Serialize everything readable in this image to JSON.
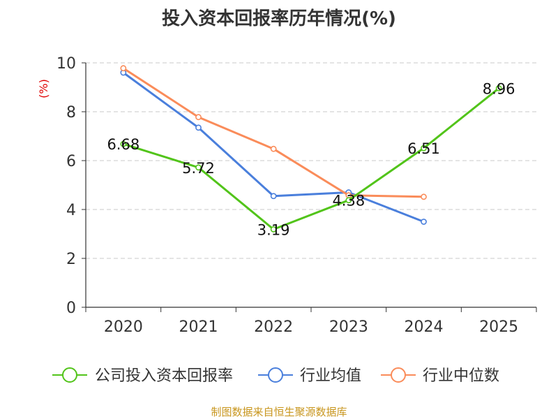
{
  "chart_data": {
    "type": "line",
    "title": "投入资本回报率历年情况(%)",
    "ylabel": "(%)",
    "xlabel": "",
    "categories": [
      "2020",
      "2021",
      "2022",
      "2023",
      "2024",
      "2025"
    ],
    "ylim": [
      0,
      10
    ],
    "yticks": [
      0,
      2,
      4,
      6,
      8,
      10
    ],
    "grid": true,
    "legend_position": "bottom",
    "series": [
      {
        "name": "公司投入资本回报率",
        "color": "#52c41a",
        "values": [
          6.68,
          5.72,
          3.19,
          4.38,
          6.51,
          8.96
        ],
        "labels": [
          "6.68",
          "5.72",
          "3.19",
          "4.38",
          "6.51",
          "8.96"
        ]
      },
      {
        "name": "行业均值",
        "color": "#4a7fdc",
        "values": [
          9.6,
          7.35,
          4.55,
          4.7,
          3.5,
          null
        ]
      },
      {
        "name": "行业中位数",
        "color": "#fa8c5a",
        "values": [
          9.78,
          7.78,
          6.48,
          4.58,
          4.52,
          null
        ]
      }
    ]
  },
  "source": "制图数据来自恒生聚源数据库"
}
